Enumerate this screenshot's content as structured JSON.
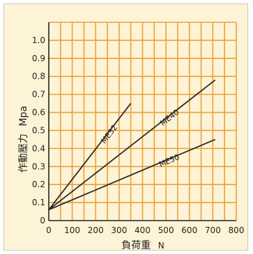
{
  "chart_data": {
    "type": "line",
    "title": "",
    "xlabel": "負荷重",
    "xunit": "N",
    "ylabel": "作動壓力",
    "yunit": "Mpa",
    "xlim": [
      0,
      800
    ],
    "ylim": [
      0,
      1.1
    ],
    "x_ticks": [
      "0",
      "100",
      "200",
      "300",
      "400",
      "500",
      "600",
      "700",
      "800"
    ],
    "y_ticks": [
      "0",
      "0.1",
      "0.2",
      "0.3",
      "0.4",
      "0.5",
      "0.6",
      "0.7",
      "0.8",
      "0.9",
      "1.0"
    ],
    "grid": true,
    "series": [
      {
        "name": "ME32",
        "x": [
          0,
          350
        ],
        "y": [
          0.06,
          0.65
        ]
      },
      {
        "name": "ME40",
        "x": [
          0,
          710
        ],
        "y": [
          0.06,
          0.78
        ]
      },
      {
        "name": "ME50",
        "x": [
          0,
          710
        ],
        "y": [
          0.06,
          0.45
        ]
      }
    ],
    "colors": {
      "background": "#fdf3d6",
      "grid": "#e8a23a",
      "axis": "#222222",
      "line": "#2a2a2a",
      "text": "#222222"
    }
  }
}
